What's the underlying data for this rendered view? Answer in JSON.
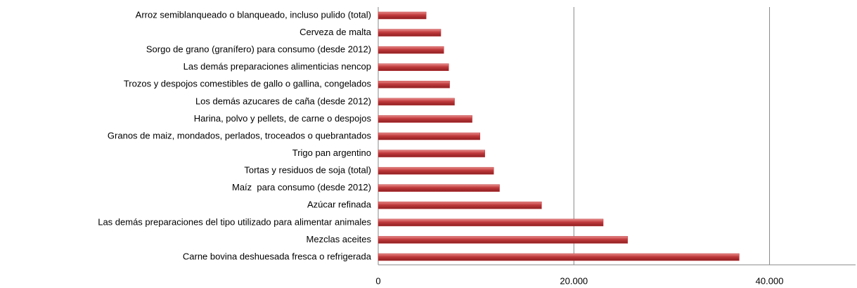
{
  "chart_data": {
    "type": "barh",
    "categories": [
      "Arroz semiblanqueado o blanqueado, incluso pulido (total)",
      "Cerveza de malta",
      "Sorgo de grano (granífero) para consumo (desde 2012)",
      "Las demás preparaciones alimenticias nencop",
      "Trozos y despojos comestibles de gallo o gallina, congelados",
      "Los demás azucares de caña (desde 2012)",
      "Harina, polvo y pellets, de carne o despojos",
      "Granos de maiz, mondados, perlados, troceados o quebrantados",
      "Trigo pan argentino",
      "Tortas y residuos de soja (total)",
      "Maíz  para consumo (desde 2012)",
      "Azúcar refinada",
      "Las demás preparaciones del tipo utilizado para alimentar animales",
      "Mezclas aceites",
      "Carne bovina deshuesada fresca o refrigerada"
    ],
    "values": [
      4900,
      6400,
      6700,
      7200,
      7300,
      7800,
      9600,
      10400,
      10900,
      11800,
      12400,
      16700,
      23000,
      25500,
      36900
    ],
    "color": "#c0393b",
    "xlim": [
      0,
      48800
    ],
    "xticks": [
      0,
      {
        "value": 20000,
        "label": "20.000"
      },
      {
        "value": 40000,
        "label": "40.000"
      }
    ],
    "grid": true
  }
}
